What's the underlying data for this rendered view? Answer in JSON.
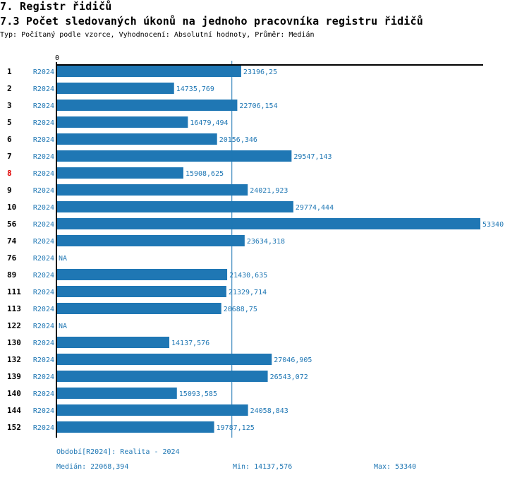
{
  "header": {
    "section_title": "7. Registr řidičů",
    "chart_title": "7.3 Počet sledovaných úkonů na jednoho pracovníka registru řidičů",
    "subtitle": "Typ: Počítaný podle vzorce, Vyhodnocení: Absolutní hodnoty, Průměr: Medián"
  },
  "colors": {
    "bar": "#1f77b4",
    "value_label": "#1f77b4",
    "series_label": "#1f77b4",
    "row_label": "#000000",
    "highlight_row_label": "#e00000",
    "axis": "#000000",
    "median_line": "#1f77b4"
  },
  "chart_data": {
    "type": "bar",
    "orientation": "horizontal",
    "title": "7.3 Počet sledovaných úkonů na jednoho pracovníka registru řidičů",
    "xlabel": "",
    "ylabel": "",
    "x_tick_labels": [
      "0"
    ],
    "xlim": [
      0,
      53340
    ],
    "series_name": "R2024",
    "categories": [
      "1",
      "2",
      "3",
      "5",
      "6",
      "7",
      "8",
      "9",
      "10",
      "56",
      "74",
      "76",
      "89",
      "111",
      "113",
      "122",
      "130",
      "132",
      "139",
      "140",
      "144",
      "152"
    ],
    "highlighted_category": "8",
    "values": [
      23196.25,
      14735.769,
      22706.154,
      16479.494,
      20156.346,
      29547.143,
      15908.625,
      24021.923,
      29774.444,
      53340,
      23634.318,
      null,
      21430.635,
      21329.714,
      20688.75,
      null,
      14137.576,
      27046.905,
      26543.072,
      15093.585,
      24058.843,
      19787.125
    ],
    "value_labels": [
      "23196,25",
      "14735,769",
      "22706,154",
      "16479,494",
      "20156,346",
      "29547,143",
      "15908,625",
      "24021,923",
      "29774,444",
      "53340",
      "23634,318",
      "NA",
      "21430,635",
      "21329,714",
      "20688,75",
      "NA",
      "14137,576",
      "27046,905",
      "26543,072",
      "15093,585",
      "24058,843",
      "19787,125"
    ],
    "median": 22068.394,
    "reference_line": "median",
    "grid": false,
    "legend": "none"
  },
  "footer": {
    "period": "Období[R2024]: Realita - 2024",
    "median": "Medián: 22068,394",
    "min": "Min: 14137,576",
    "max": "Max: 53340"
  }
}
